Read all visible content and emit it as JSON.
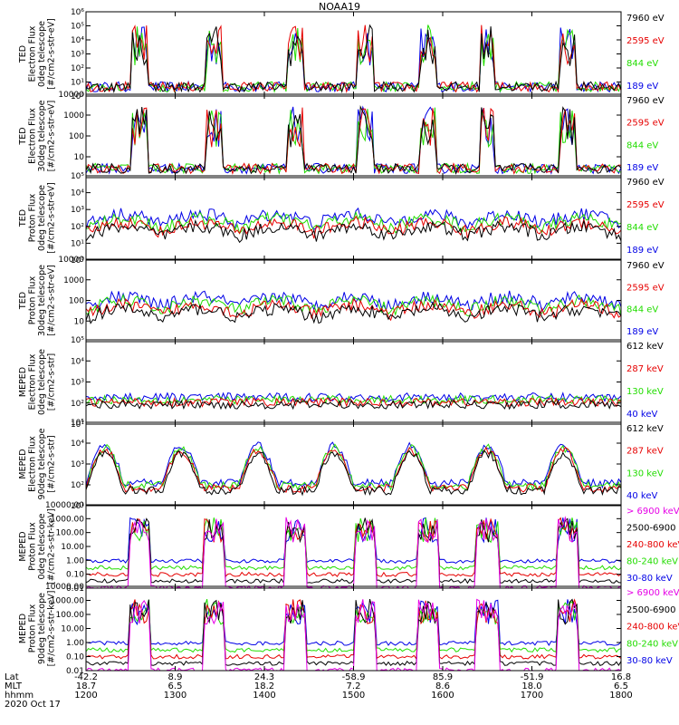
{
  "title": "NOAA19",
  "colors": {
    "black": "#000000",
    "red": "#e60000",
    "green": "#22dd00",
    "blue": "#0000e6",
    "magenta": "#e600e6"
  },
  "chart_data": [
    {
      "type": "line",
      "ylabel": [
        "TED",
        "Electron Flux",
        "0deg telescope",
        "[#/cm2-s-str-eV]"
      ],
      "yscale": "log",
      "ylim": [
        1,
        1000000
      ],
      "yticks": [
        {
          "v": 1,
          "t": "10⁰"
        },
        {
          "v": 10,
          "t": "10¹"
        },
        {
          "v": 100,
          "t": "10²"
        },
        {
          "v": 1000,
          "t": "10³"
        },
        {
          "v": 10000,
          "t": "10⁴"
        },
        {
          "v": 100000,
          "t": "10⁵"
        },
        {
          "v": 1000000,
          "t": "10⁶"
        }
      ],
      "legend": [
        {
          "name": "7960 eV",
          "color": "#000000"
        },
        {
          "name": "2595 eV",
          "color": "#e60000"
        },
        {
          "name": "844 eV",
          "color": "#22dd00"
        },
        {
          "name": "189 eV",
          "color": "#0000e6"
        }
      ]
    },
    {
      "type": "line",
      "ylabel": [
        "TED",
        "Electron Flux",
        "30deg telescope",
        "[#/cm2-s-str-eV]"
      ],
      "yscale": "log",
      "ylim": [
        1,
        10000
      ],
      "yticks": [
        {
          "v": 10,
          "t": "10"
        },
        {
          "v": 100,
          "t": "100"
        },
        {
          "v": 1000,
          "t": "1000"
        },
        {
          "v": 10000,
          "t": "10000"
        }
      ],
      "legend": [
        {
          "name": "7960 eV",
          "color": "#000000"
        },
        {
          "name": "2595 eV",
          "color": "#e60000"
        },
        {
          "name": "844 eV",
          "color": "#22dd00"
        },
        {
          "name": "189 eV",
          "color": "#0000e6"
        }
      ]
    },
    {
      "type": "line",
      "ylabel": [
        "TED",
        "Proton Flux",
        "0deg telescope",
        "[#/cm2-s-str-eV]"
      ],
      "yscale": "log",
      "ylim": [
        1,
        100000
      ],
      "yticks": [
        {
          "v": 1,
          "t": "10⁰"
        },
        {
          "v": 10,
          "t": "10¹"
        },
        {
          "v": 100,
          "t": "10²"
        },
        {
          "v": 1000,
          "t": "10³"
        },
        {
          "v": 10000,
          "t": "10⁴"
        },
        {
          "v": 100000,
          "t": "10⁵"
        }
      ],
      "legend": [
        {
          "name": "7960 eV",
          "color": "#000000"
        },
        {
          "name": "2595 eV",
          "color": "#e60000"
        },
        {
          "name": "844 eV",
          "color": "#22dd00"
        },
        {
          "name": "189 eV",
          "color": "#0000e6"
        }
      ]
    },
    {
      "type": "line",
      "ylabel": [
        "TED",
        "Proton Flux",
        "30deg telescope",
        "[#/cm2-s-str-eV]"
      ],
      "yscale": "log",
      "ylim": [
        1,
        10000
      ],
      "yticks": [
        {
          "v": 10,
          "t": "10"
        },
        {
          "v": 100,
          "t": "100"
        },
        {
          "v": 1000,
          "t": "1000"
        },
        {
          "v": 10000,
          "t": "10000"
        }
      ],
      "legend": [
        {
          "name": "7960 eV",
          "color": "#000000"
        },
        {
          "name": "2595 eV",
          "color": "#e60000"
        },
        {
          "name": "844 eV",
          "color": "#22dd00"
        },
        {
          "name": "189 eV",
          "color": "#0000e6"
        }
      ]
    },
    {
      "type": "line",
      "ylabel": [
        "MEPED",
        "Electron Flux",
        "0deg telescope",
        "[#/cm2-s-str]"
      ],
      "yscale": "log",
      "ylim": [
        10,
        100000
      ],
      "yticks": [
        {
          "v": 10,
          "t": "10¹"
        },
        {
          "v": 100,
          "t": "10²"
        },
        {
          "v": 1000,
          "t": "10³"
        },
        {
          "v": 10000,
          "t": "10⁴"
        },
        {
          "v": 100000,
          "t": "10⁵"
        }
      ],
      "legend": [
        {
          "name": "612 keV",
          "color": "#000000"
        },
        {
          "name": "287 keV",
          "color": "#e60000"
        },
        {
          "name": "130 keV",
          "color": "#22dd00"
        },
        {
          "name": "40 keV",
          "color": "#0000e6"
        }
      ]
    },
    {
      "type": "line",
      "ylabel": [
        "MEPED",
        "Electron Flux",
        "90deg telescope",
        "[#/cm2-s-str]"
      ],
      "yscale": "log",
      "ylim": [
        10,
        100000
      ],
      "yticks": [
        {
          "v": 10,
          "t": "10¹"
        },
        {
          "v": 100,
          "t": "10²"
        },
        {
          "v": 1000,
          "t": "10³"
        },
        {
          "v": 10000,
          "t": "10⁴"
        },
        {
          "v": 100000,
          "t": "10⁵"
        }
      ],
      "legend": [
        {
          "name": "612 keV",
          "color": "#000000"
        },
        {
          "name": "287 keV",
          "color": "#e60000"
        },
        {
          "name": "130 keV",
          "color": "#22dd00"
        },
        {
          "name": "40 keV",
          "color": "#0000e6"
        }
      ]
    },
    {
      "type": "line",
      "ylabel": [
        "MEPED",
        "Proton Flux",
        "0deg telescope",
        "[#/cm2-s-str-keV]"
      ],
      "yscale": "log",
      "ylim": [
        0.01,
        10000
      ],
      "yticks": [
        {
          "v": 0.01,
          "t": "0.01"
        },
        {
          "v": 0.1,
          "t": "0.10"
        },
        {
          "v": 1,
          "t": "1.00"
        },
        {
          "v": 10,
          "t": "10.00"
        },
        {
          "v": 100,
          "t": "100.00"
        },
        {
          "v": 1000,
          "t": "1000.00"
        },
        {
          "v": 10000,
          "t": "10000.00"
        }
      ],
      "legend": [
        {
          "name": "> 6900 keV",
          "color": "#e600e6"
        },
        {
          "name": "2500-6900",
          "color": "#000000"
        },
        {
          "name": "240-800 keV",
          "color": "#e60000"
        },
        {
          "name": "80-240 keV",
          "color": "#22dd00"
        },
        {
          "name": "30-80 keV",
          "color": "#0000e6"
        }
      ]
    },
    {
      "type": "line",
      "ylabel": [
        "MEPED",
        "Proton Flux",
        "90deg telescope",
        "[#/cm2-s-str-keV]"
      ],
      "yscale": "log",
      "ylim": [
        0.01,
        10000
      ],
      "yticks": [
        {
          "v": 0.01,
          "t": "0.01"
        },
        {
          "v": 0.1,
          "t": "0.10"
        },
        {
          "v": 1,
          "t": "1.00"
        },
        {
          "v": 10,
          "t": "10.00"
        },
        {
          "v": 100,
          "t": "100.00"
        },
        {
          "v": 1000,
          "t": "1000.00"
        },
        {
          "v": 10000,
          "t": "10000.00"
        }
      ],
      "legend": [
        {
          "name": "> 6900 keV",
          "color": "#e600e6"
        },
        {
          "name": "2500-6900",
          "color": "#000000"
        },
        {
          "name": "240-800 keV",
          "color": "#e60000"
        },
        {
          "name": "80-240 keV",
          "color": "#22dd00"
        },
        {
          "name": "30-80 keV",
          "color": "#0000e6"
        }
      ]
    }
  ],
  "xaxis": {
    "row_labels": [
      "Lat",
      "MLT",
      "hhmm"
    ],
    "date": "2020 Oct 17",
    "ticks": [
      {
        "lat": "-42.2",
        "mlt": "18.7",
        "hhmm": "1200"
      },
      {
        "lat": "8.9",
        "mlt": "6.5",
        "hhmm": "1300"
      },
      {
        "lat": "24.3",
        "mlt": "18.2",
        "hhmm": "1400"
      },
      {
        "lat": "-58.9",
        "mlt": "7.2",
        "hhmm": "1500"
      },
      {
        "lat": "85.9",
        "mlt": "8.6",
        "hhmm": "1600"
      },
      {
        "lat": "-51.9",
        "mlt": "18.0",
        "hhmm": "1700"
      },
      {
        "lat": "16.8",
        "mlt": "6.5",
        "hhmm": "1800"
      }
    ]
  }
}
